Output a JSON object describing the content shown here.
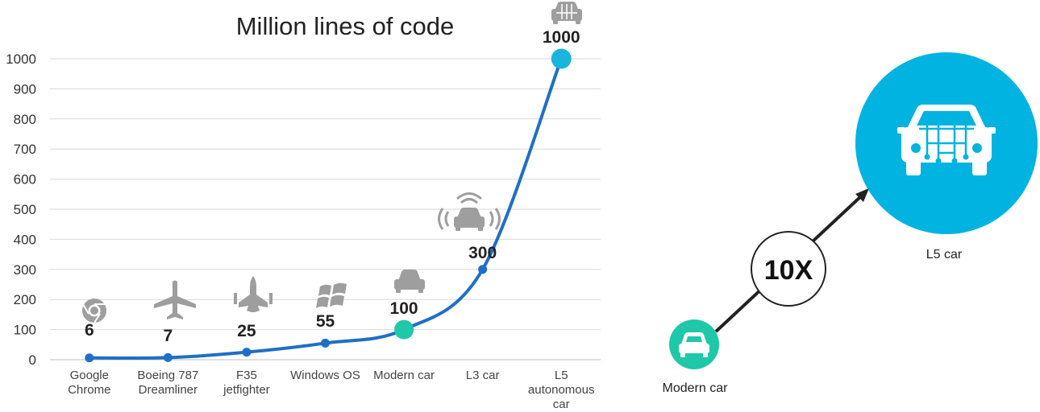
{
  "chart_data": {
    "type": "line",
    "title": "Million lines of code",
    "xlabel": "",
    "ylabel": "",
    "categories": [
      [
        "Google",
        "Chrome"
      ],
      [
        "Boeing 787",
        "Dreamliner"
      ],
      [
        "F35",
        "jetfighter"
      ],
      [
        "Windows OS"
      ],
      [
        "Modern car"
      ],
      [
        "L3 car"
      ],
      [
        "L5",
        "autonomous",
        "car"
      ]
    ],
    "yticks": [
      "0",
      "100",
      "200",
      "300",
      "400",
      "500",
      "600",
      "700",
      "800",
      "900",
      "1000"
    ],
    "ylim": [
      0,
      1000
    ],
    "grid": true,
    "series": [
      {
        "values": [
          6,
          7,
          25,
          55,
          100,
          300,
          1000
        ]
      }
    ],
    "data_labels": [
      "6",
      "7",
      "25",
      "55",
      "100",
      "300",
      "1000"
    ],
    "icons": [
      "chrome-icon",
      "airplane-icon",
      "jetfighter-icon",
      "windows-icon",
      "car-icon",
      "connected-car-icon",
      "autonomous-car-icon"
    ],
    "colors": {
      "line": "#1f6fc5",
      "highlight_modern": "#1ec8a8",
      "highlight_l5": "#1ab4dd",
      "icon": "#9e9e9e"
    }
  },
  "diagram": {
    "multiplier": "10X",
    "from_label": "Modern car",
    "to_label": "L5 car",
    "colors": {
      "from": "#1ec8a8",
      "to": "#00b3e0",
      "arrow": "#222222"
    }
  }
}
